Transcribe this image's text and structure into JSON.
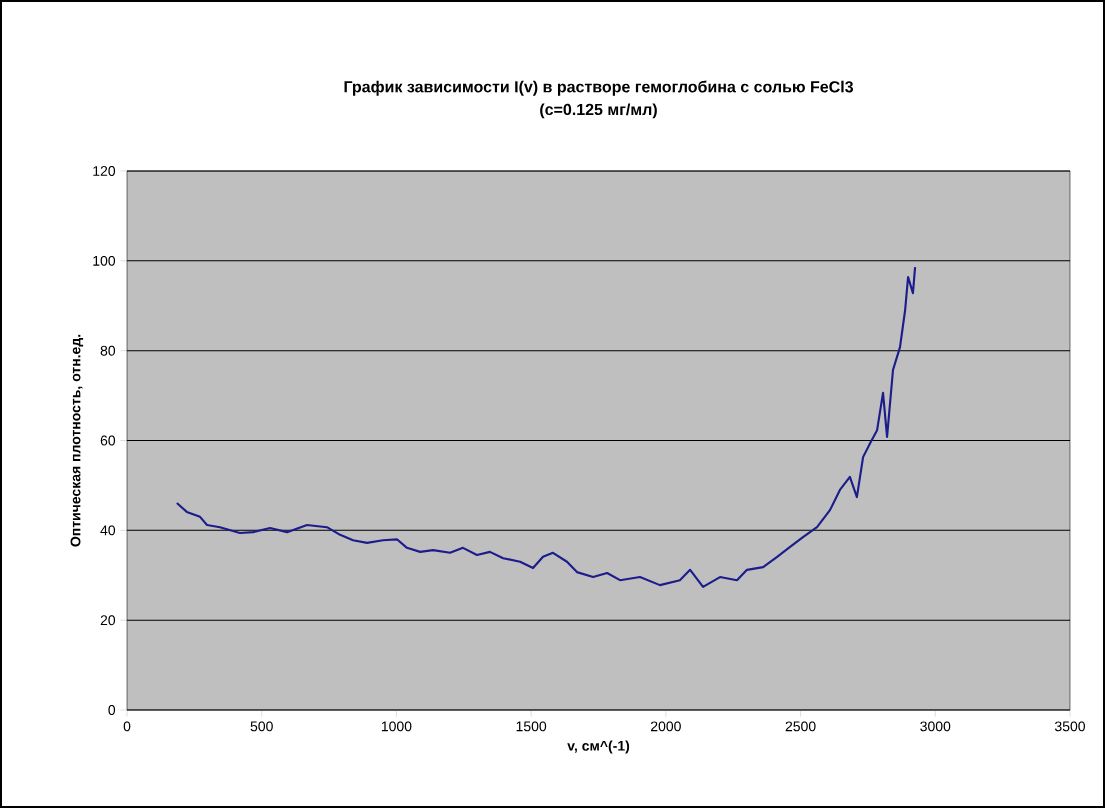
{
  "chart_data": {
    "type": "line",
    "title": "График зависимости I(v) в растворе гемоглобина с солью FeCl3",
    "subtitle": "(c=0.125 мг/мл)",
    "xlabel": "v, см^(-1)",
    "ylabel": "Оптическая плотность, отн.ед.",
    "x": [
      185,
      222,
      271,
      297,
      345,
      419,
      468,
      531,
      594,
      668,
      742,
      791,
      839,
      891,
      950,
      1002,
      1039,
      1088,
      1136,
      1199,
      1247,
      1299,
      1347,
      1396,
      1459,
      1507,
      1544,
      1581,
      1633,
      1670,
      1730,
      1782,
      1830,
      1904,
      1978,
      2052,
      2090,
      2138,
      2201,
      2264,
      2301,
      2361,
      2413,
      2461,
      2509,
      2561,
      2609,
      2646,
      2683,
      2709,
      2732,
      2758,
      2784,
      2806,
      2821,
      2843,
      2869,
      2888,
      2899,
      2917,
      2925
    ],
    "series": [
      {
        "color": "#1c1c8c",
        "values": [
          46.1,
          44.1,
          43,
          41.2,
          40.7,
          39.4,
          39.6,
          40.5,
          39.6,
          41.2,
          40.7,
          39,
          37.8,
          37.2,
          37.8,
          38,
          36.1,
          35.2,
          35.6,
          35,
          36.1,
          34.5,
          35.2,
          33.8,
          33,
          31.6,
          34.1,
          35,
          33,
          30.7,
          29.6,
          30.5,
          28.9,
          29.6,
          27.8,
          28.9,
          31.2,
          27.4,
          29.6,
          28.9,
          31.2,
          31.8,
          34.1,
          36.3,
          38.5,
          40.7,
          44.5,
          49,
          51.9,
          47.4,
          56.3,
          59.4,
          62.3,
          70.6,
          60.8,
          75.7,
          80.8,
          89,
          96.4,
          92.8,
          98.6
        ]
      }
    ],
    "xlim": [
      0,
      3500
    ],
    "xticks": [
      0,
      500,
      1000,
      1500,
      2000,
      2500,
      3000,
      3500
    ],
    "ylim": [
      0,
      120
    ],
    "yticks": [
      0,
      20,
      40,
      60,
      80,
      100,
      120
    ],
    "grid": "y",
    "marker": "none",
    "line_style": "solid"
  }
}
